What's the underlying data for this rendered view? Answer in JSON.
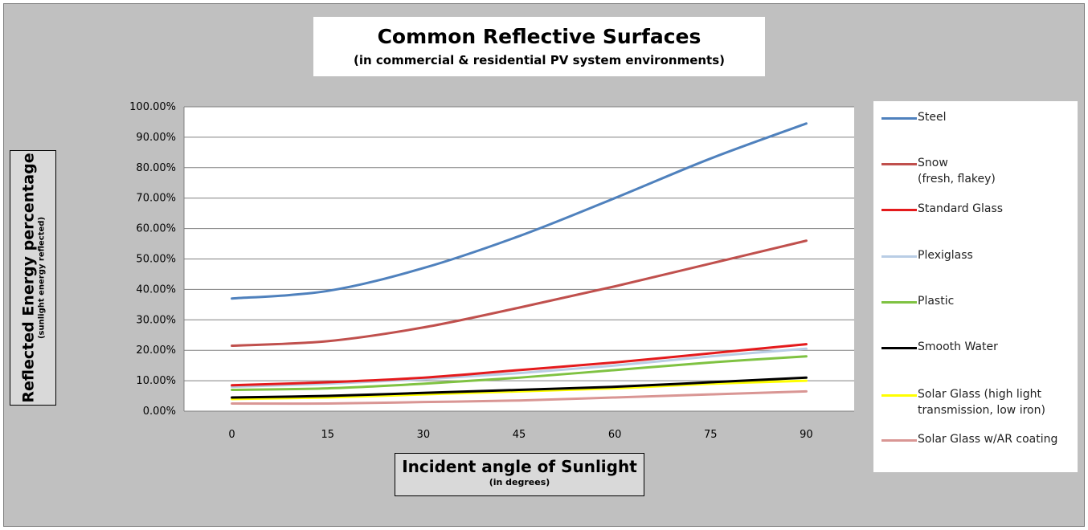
{
  "chart_data": {
    "type": "line",
    "title": "Common Reflective Surfaces",
    "subtitle": "(in commercial & residential PV system environments)",
    "ylabel": "Reflected Energy percentage",
    "ylabel_sub": "(sunlight energy reflected)",
    "xlabel": "Incident angle of Sunlight",
    "xlabel_sub": "(in degrees)",
    "categories": [
      "0",
      "15",
      "30",
      "45",
      "60",
      "75",
      "90"
    ],
    "y_ticks": [
      "0.00%",
      "10.00%",
      "20.00%",
      "30.00%",
      "40.00%",
      "50.00%",
      "60.00%",
      "70.00%",
      "80.00%",
      "90.00%",
      "100.00%"
    ],
    "ylim": [
      0,
      100
    ],
    "grid": true,
    "legend_position": "right",
    "series": [
      {
        "name": "Steel",
        "color": "#4f81bd",
        "values": [
          37,
          39.5,
          47,
          57.5,
          70,
          83,
          94.5
        ]
      },
      {
        "name": "Snow\n(fresh, flakey)",
        "color": "#c0504d",
        "values": [
          21.5,
          23,
          27.5,
          34,
          41,
          48.5,
          56
        ]
      },
      {
        "name": "Standard Glass",
        "color": "#e41a1c",
        "values": [
          8.5,
          9.5,
          11,
          13.5,
          16,
          19,
          22
        ]
      },
      {
        "name": "Plexiglass",
        "color": "#b9cde5",
        "values": [
          8,
          9,
          10.5,
          12.5,
          15,
          18,
          20.5
        ]
      },
      {
        "name": "Plastic",
        "color": "#7fc242",
        "values": [
          7,
          7.5,
          9,
          11,
          13.5,
          16,
          18
        ]
      },
      {
        "name": "Smooth Water",
        "color": "#000000",
        "values": [
          4.5,
          5,
          6,
          7,
          8,
          9.5,
          11
        ]
      },
      {
        "name": "Solar Glass (high light transmission, low iron)",
        "color": "#ffff00",
        "values": [
          4,
          4.5,
          5.5,
          6.5,
          7.5,
          9,
          10
        ]
      },
      {
        "name": "Solar Glass w/AR coating",
        "color": "#d99694",
        "values": [
          2.5,
          2.5,
          3,
          3.5,
          4.5,
          5.5,
          6.5
        ]
      }
    ]
  }
}
